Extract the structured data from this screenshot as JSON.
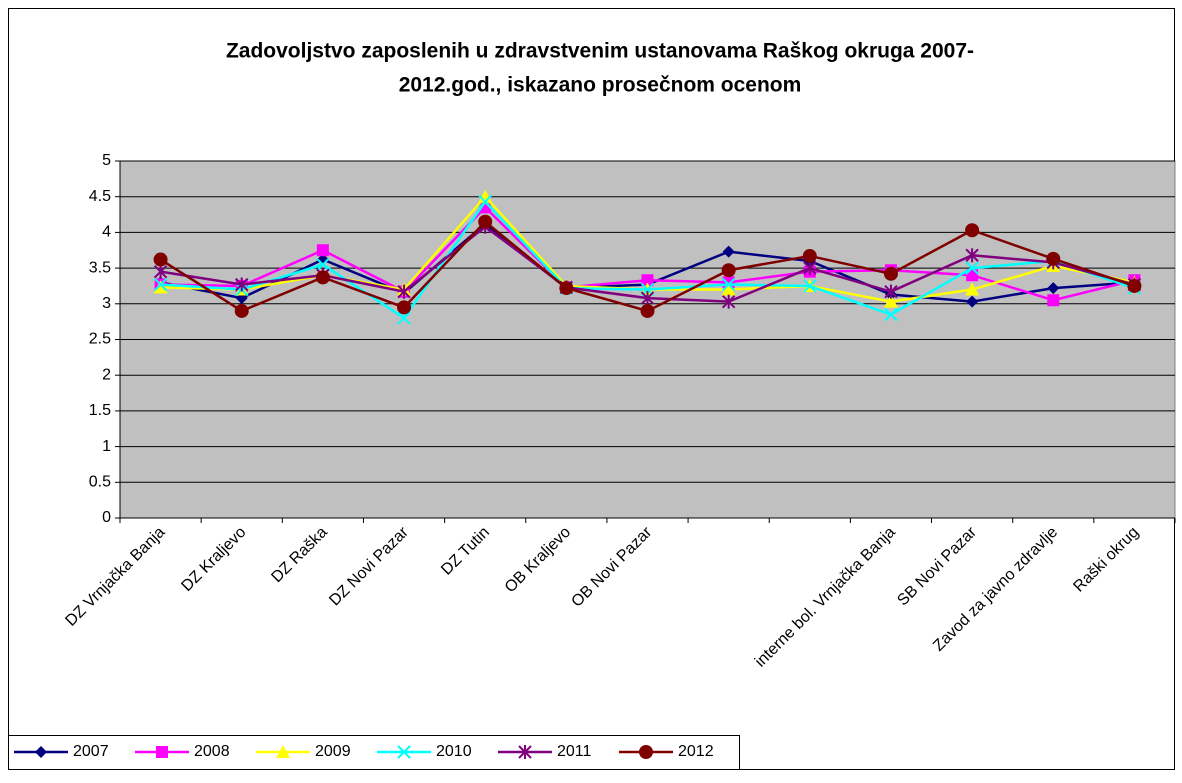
{
  "chart_data": {
    "type": "line",
    "title": [
      "Zadovoljstvo zaposlenih u zdravstvenim ustanovama Raškog okruga 2007-",
      "2012.god., iskazano prosečnom ocenom"
    ],
    "categories": [
      "DZ Vrnjačka Banja",
      "DZ Kraljevo",
      "DZ Raška",
      "DZ Novi Pazar",
      "DZ Tutin",
      "OB Kraljevo",
      "OB Novi Pazar",
      null,
      null,
      "interne bol. Vrnjačka Banja",
      "SB Novi Pazar",
      "Zavod za javno zdravlje",
      "Raški okrug"
    ],
    "ylim": [
      0,
      5
    ],
    "yticks": [
      0,
      0.5,
      1,
      1.5,
      2,
      2.5,
      3,
      3.5,
      4,
      4.5,
      5
    ],
    "grid": true,
    "legend": "bottom",
    "series": [
      {
        "name": "2007",
        "color": "#000080",
        "marker": "diamond",
        "values": [
          3.3,
          3.08,
          3.62,
          3.15,
          4.12,
          3.22,
          3.27,
          3.73,
          3.6,
          3.13,
          3.03,
          3.22,
          3.3
        ]
      },
      {
        "name": "2008",
        "color": "#ff00ff",
        "marker": "square",
        "values": [
          3.27,
          3.25,
          3.75,
          3.17,
          4.35,
          3.23,
          3.33,
          3.3,
          3.45,
          3.47,
          3.4,
          3.05,
          3.33
        ]
      },
      {
        "name": "2009",
        "color": "#ffff00",
        "marker": "triangle",
        "values": [
          3.23,
          3.2,
          3.4,
          3.2,
          4.5,
          3.25,
          3.2,
          3.2,
          3.25,
          3.03,
          3.2,
          3.53,
          3.3
        ]
      },
      {
        "name": "2010",
        "color": "#00ffff",
        "marker": "x",
        "values": [
          3.27,
          3.2,
          3.55,
          2.8,
          4.43,
          3.22,
          3.2,
          3.27,
          3.25,
          2.85,
          3.5,
          3.6,
          3.22
        ]
      },
      {
        "name": "2011",
        "color": "#800080",
        "marker": "star",
        "values": [
          3.45,
          3.27,
          3.4,
          3.17,
          4.08,
          3.23,
          3.08,
          3.03,
          3.5,
          3.17,
          3.68,
          3.58,
          3.27
        ]
      },
      {
        "name": "2012",
        "color": "#800000",
        "marker": "circle",
        "values": [
          3.62,
          2.9,
          3.37,
          2.95,
          4.15,
          3.22,
          2.9,
          3.47,
          3.67,
          3.42,
          4.03,
          3.63,
          3.25
        ]
      }
    ]
  }
}
